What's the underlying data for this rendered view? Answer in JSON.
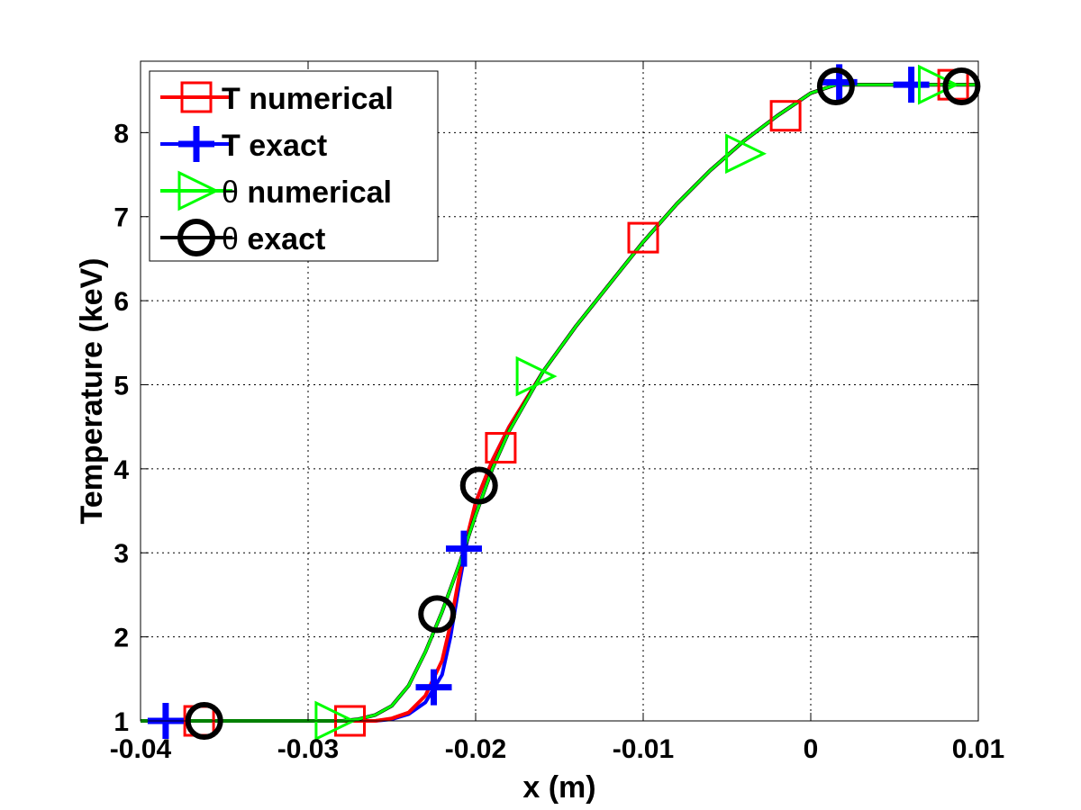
{
  "chart_data": {
    "type": "line",
    "xlabel": "x (m)",
    "ylabel": "Temperature (keV)",
    "xlim": [
      -0.04,
      0.01
    ],
    "ylim": [
      1,
      8.85
    ],
    "xticks": [
      "-0.04",
      "-0.03",
      "-0.02",
      "-0.01",
      "0",
      "0.01"
    ],
    "yticks": [
      "1",
      "2",
      "3",
      "4",
      "5",
      "6",
      "7",
      "8"
    ],
    "grid": true,
    "legend_position": "top-left",
    "series": [
      {
        "name": "T numerical",
        "label_prefix": "T",
        "label_suffix": " numerical",
        "color": "#ff0000",
        "marker": "square",
        "x": [
          -0.04,
          -0.026,
          -0.025,
          -0.024,
          -0.023,
          -0.022,
          -0.0215,
          -0.021,
          -0.0205,
          -0.02,
          -0.019,
          -0.018,
          -0.016,
          -0.014,
          -0.012,
          -0.01,
          -0.008,
          -0.006,
          -0.004,
          -0.002,
          0.0,
          0.0015,
          0.0025,
          0.01
        ],
        "y": [
          1.0,
          1.0,
          1.03,
          1.1,
          1.3,
          1.72,
          2.15,
          2.7,
          3.2,
          3.6,
          4.1,
          4.5,
          5.15,
          5.7,
          6.2,
          6.7,
          7.15,
          7.55,
          7.9,
          8.2,
          8.47,
          8.57,
          8.57,
          8.57
        ],
        "marker_x": [
          -0.0365,
          -0.0275,
          -0.0185,
          -0.01,
          -0.0015,
          0.0085
        ],
        "marker_y": [
          1.0,
          1.0,
          4.25,
          6.75,
          8.2,
          8.57
        ]
      },
      {
        "name": "T exact",
        "label_prefix": "T",
        "label_suffix": " exact",
        "color": "#0000ff",
        "marker": "plus",
        "x": [
          -0.04,
          -0.026,
          -0.025,
          -0.024,
          -0.023,
          -0.022,
          -0.0215,
          -0.021,
          -0.0205,
          -0.02,
          -0.019,
          -0.018,
          -0.016,
          -0.014,
          -0.012,
          -0.01,
          -0.008,
          -0.006,
          -0.004,
          -0.002,
          0.0,
          0.0015,
          0.0025,
          0.01
        ],
        "y": [
          1.0,
          1.0,
          1.02,
          1.08,
          1.22,
          1.55,
          2.0,
          2.6,
          3.15,
          3.6,
          4.1,
          4.5,
          5.15,
          5.7,
          6.2,
          6.7,
          7.15,
          7.55,
          7.9,
          8.2,
          8.47,
          8.57,
          8.57,
          8.57
        ],
        "marker_x": [
          -0.0385,
          -0.0225,
          -0.0207,
          0.0017,
          0.006
        ],
        "marker_y": [
          1.0,
          1.4,
          3.05,
          8.6,
          8.57
        ]
      },
      {
        "name": "θ numerical",
        "label_prefix": "θ",
        "label_suffix": " numerical",
        "color": "#00ff00",
        "marker": "triangle-right",
        "x": [
          -0.04,
          -0.028,
          -0.027,
          -0.026,
          -0.025,
          -0.024,
          -0.023,
          -0.022,
          -0.021,
          -0.02,
          -0.019,
          -0.018,
          -0.016,
          -0.014,
          -0.012,
          -0.01,
          -0.008,
          -0.006,
          -0.004,
          -0.002,
          0.0,
          0.0015,
          0.0025,
          0.01
        ],
        "y": [
          1.0,
          1.0,
          1.02,
          1.07,
          1.18,
          1.42,
          1.82,
          2.3,
          2.85,
          3.45,
          4.0,
          4.45,
          5.15,
          5.7,
          6.2,
          6.7,
          7.15,
          7.55,
          7.9,
          8.2,
          8.47,
          8.57,
          8.57,
          8.57
        ],
        "marker_x": [
          -0.0285,
          -0.0165,
          -0.004,
          0.0075
        ],
        "marker_y": [
          1.0,
          5.1,
          7.75,
          8.57
        ]
      },
      {
        "name": "θ exact",
        "label_prefix": "θ",
        "label_suffix": " exact",
        "color": "#000000",
        "marker": "circle",
        "x": [
          -0.04,
          -0.028,
          -0.027,
          -0.026,
          -0.025,
          -0.024,
          -0.023,
          -0.022,
          -0.021,
          -0.02,
          -0.019,
          -0.018,
          -0.016,
          -0.014,
          -0.012,
          -0.01,
          -0.008,
          -0.006,
          -0.004,
          -0.002,
          0.0,
          0.0015,
          0.0025,
          0.01
        ],
        "y": [
          1.0,
          1.0,
          1.02,
          1.07,
          1.18,
          1.42,
          1.82,
          2.3,
          2.85,
          3.45,
          4.0,
          4.45,
          5.15,
          5.7,
          6.2,
          6.7,
          7.15,
          7.55,
          7.9,
          8.2,
          8.47,
          8.57,
          8.57,
          8.57
        ],
        "marker_x": [
          -0.0362,
          -0.0223,
          -0.0198,
          0.0015,
          0.009
        ],
        "marker_y": [
          1.0,
          2.27,
          3.8,
          8.55,
          8.55
        ]
      }
    ]
  }
}
